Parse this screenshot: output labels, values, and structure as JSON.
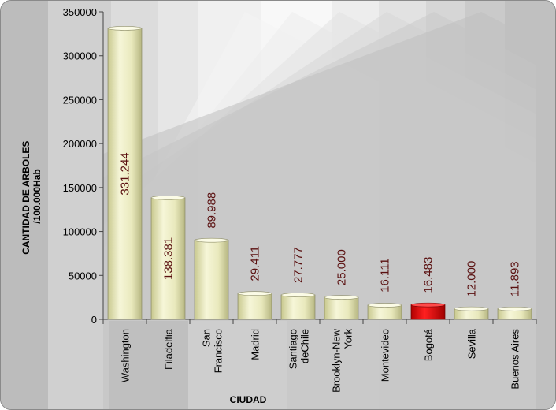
{
  "chart_data": {
    "type": "bar",
    "categories": [
      "Washington",
      "Filadelfia",
      "San\nFrancisco",
      "Madrid",
      "Santiago\ndeChile",
      "Brooklyn-New\nYork",
      "Montevideo",
      "Bogotá",
      "Sevilla",
      "Buenos Aires"
    ],
    "values": [
      331244,
      138381,
      89988,
      29411,
      27777,
      25000,
      16111,
      16483,
      12000,
      11893
    ],
    "value_labels": [
      "331.244",
      "138.381",
      "89.988",
      "29.411",
      "27.777",
      "25.000",
      "16.111",
      "16.483",
      "12.000",
      "11.893"
    ],
    "highlight_index": 7,
    "ylim": [
      0,
      350000
    ],
    "yticks": [
      "0",
      "50000",
      "100000",
      "150000",
      "200000",
      "250000",
      "300000",
      "350000"
    ],
    "xlabel": "CIUDAD",
    "ylabel_line1": "CANTIDAD DE ARBOLES",
    "ylabel_line2": "/100.000Hab",
    "grid": false,
    "colors": {
      "bar": "#ebebc0",
      "bar_highlight": "#e00000",
      "value_text": "#5a1010"
    }
  }
}
